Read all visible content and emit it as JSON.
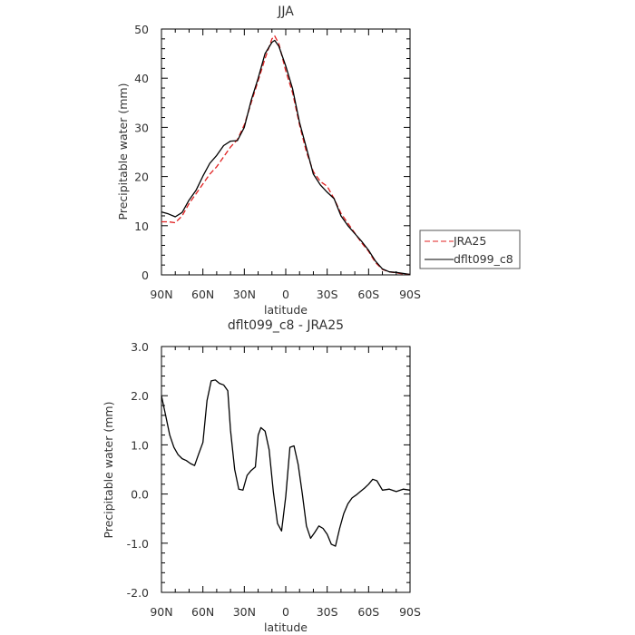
{
  "chart_data": [
    {
      "type": "line",
      "title": "JJA",
      "xlabel": "latitude",
      "ylabel": "Precipitable water (mm)",
      "xlim": [
        90,
        -90
      ],
      "ylim": [
        0,
        50
      ],
      "x_ticks": [
        {
          "value": 90,
          "label": "90N"
        },
        {
          "value": 60,
          "label": "60N"
        },
        {
          "value": 30,
          "label": "30N"
        },
        {
          "value": 0,
          "label": "0"
        },
        {
          "value": -30,
          "label": "30S"
        },
        {
          "value": -60,
          "label": "60S"
        },
        {
          "value": -90,
          "label": "90S"
        }
      ],
      "y_ticks": [
        {
          "value": 0,
          "label": "0"
        },
        {
          "value": 10,
          "label": "10"
        },
        {
          "value": 20,
          "label": "20"
        },
        {
          "value": 30,
          "label": "30"
        },
        {
          "value": 40,
          "label": "40"
        },
        {
          "value": 50,
          "label": "50"
        }
      ],
      "grid": false,
      "legend": "right",
      "x": [
        90,
        85,
        80,
        75,
        70,
        65,
        60,
        55,
        50,
        45,
        40,
        35,
        30,
        25,
        20,
        15,
        10,
        8,
        5,
        0,
        -5,
        -10,
        -15,
        -20,
        -25,
        -30,
        -35,
        -40,
        -45,
        -50,
        -55,
        -60,
        -65,
        -70,
        -75,
        -80,
        -85,
        -90
      ],
      "series": [
        {
          "name": "JRA25",
          "color": "#e02020",
          "dash": "dashed",
          "values": [
            10.8,
            10.8,
            10.6,
            12.0,
            14.5,
            16.5,
            18.5,
            20.5,
            22.0,
            24.0,
            26.0,
            27.5,
            30.5,
            35.0,
            39.5,
            44.0,
            48.0,
            48.6,
            47.0,
            41.5,
            37.0,
            30.5,
            25.0,
            21.0,
            19.0,
            18.0,
            15.5,
            12.5,
            10.5,
            8.5,
            6.5,
            4.8,
            2.5,
            1.1,
            0.6,
            0.4,
            0.2,
            0.1
          ]
        },
        {
          "name": "dflt099_c8",
          "color": "#000000",
          "dash": "solid",
          "values": [
            12.8,
            12.4,
            11.8,
            12.7,
            15.2,
            17.2,
            20.1,
            22.7,
            24.3,
            26.3,
            27.2,
            27.3,
            30.0,
            35.5,
            40.0,
            45.0,
            47.3,
            47.7,
            46.5,
            42.5,
            37.8,
            31.0,
            25.8,
            20.5,
            18.3,
            16.8,
            15.5,
            12.0,
            10.0,
            8.4,
            6.8,
            5.0,
            2.8,
            1.2,
            0.6,
            0.5,
            0.3,
            0.1
          ]
        }
      ]
    },
    {
      "type": "line",
      "title": "dflt099_c8 - JRA25",
      "xlabel": "latitude",
      "ylabel": "Precipitable water (mm)",
      "xlim": [
        90,
        -90
      ],
      "ylim": [
        -2,
        3
      ],
      "x_ticks": [
        {
          "value": 90,
          "label": "90N"
        },
        {
          "value": 60,
          "label": "60N"
        },
        {
          "value": 30,
          "label": "30N"
        },
        {
          "value": 0,
          "label": "0"
        },
        {
          "value": -30,
          "label": "30S"
        },
        {
          "value": -60,
          "label": "60S"
        },
        {
          "value": -90,
          "label": "90S"
        }
      ],
      "y_ticks": [
        {
          "value": -2,
          "label": "-2.0"
        },
        {
          "value": -1,
          "label": "-1.0"
        },
        {
          "value": 0,
          "label": "0.0"
        },
        {
          "value": 1,
          "label": "1.0"
        },
        {
          "value": 2,
          "label": "2.0"
        },
        {
          "value": 3,
          "label": "3.0"
        }
      ],
      "grid": false,
      "x": [
        90,
        87,
        84,
        81,
        78,
        75,
        72,
        69,
        66,
        63,
        60,
        57,
        54,
        51,
        48,
        45,
        42,
        40,
        37,
        34,
        31,
        28,
        25,
        22,
        20,
        18,
        15,
        12,
        9,
        6,
        3,
        0,
        -3,
        -6,
        -9,
        -12,
        -15,
        -18,
        -21,
        -24,
        -27,
        -30,
        -33,
        -36,
        -39,
        -42,
        -45,
        -48,
        -51,
        -54,
        -57,
        -60,
        -63,
        -66,
        -70,
        -75,
        -80,
        -85,
        -90
      ],
      "series": [
        {
          "name": "",
          "color": "#000000",
          "dash": "solid",
          "values": [
            2.0,
            1.6,
            1.2,
            0.95,
            0.8,
            0.72,
            0.68,
            0.62,
            0.58,
            0.82,
            1.05,
            1.9,
            2.3,
            2.32,
            2.25,
            2.22,
            2.1,
            1.3,
            0.5,
            0.1,
            0.08,
            0.38,
            0.48,
            0.55,
            1.2,
            1.35,
            1.28,
            0.9,
            0.05,
            -0.6,
            -0.75,
            -0.05,
            0.95,
            0.98,
            0.6,
            0.0,
            -0.65,
            -0.9,
            -0.78,
            -0.65,
            -0.7,
            -0.82,
            -1.02,
            -1.06,
            -0.7,
            -0.4,
            -0.2,
            -0.08,
            -0.02,
            0.05,
            0.12,
            0.2,
            0.3,
            0.27,
            0.08,
            0.1,
            0.05,
            0.1,
            0.08
          ]
        }
      ]
    }
  ]
}
